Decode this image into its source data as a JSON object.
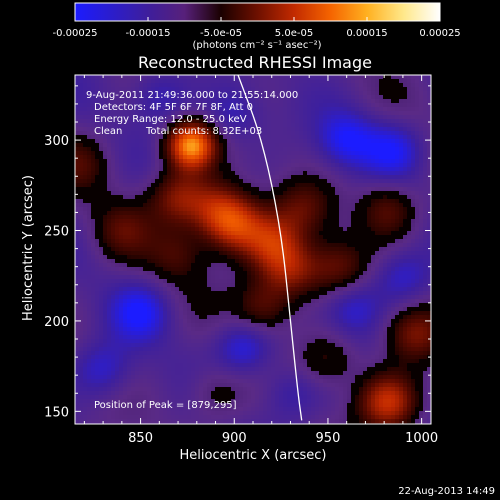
{
  "colorbar": {
    "min": -0.00025,
    "max": 0.00025,
    "tick_values": [
      -0.00025,
      -0.00015,
      -5e-05,
      5e-05,
      0.00015,
      0.00025
    ],
    "tick_labels": [
      "-0.00025",
      "-0.00015",
      "-5.0e-05",
      "5.0e-05",
      "0.00015",
      "0.00025"
    ],
    "unit_label": "(photons cm⁻² s⁻¹ asec⁻²)",
    "colors": [
      "#1c1cff",
      "#2b1dcc",
      "#3e1e9c",
      "#57207a",
      "#1a0000",
      "#6e1000",
      "#c22a00",
      "#f56400",
      "#ffb020",
      "#ffe88a",
      "#ffffff"
    ]
  },
  "chart_data": {
    "type": "heatmap",
    "title": "Reconstructed RHESSI Image",
    "xlabel": "Heliocentric X (arcsec)",
    "ylabel": "Heliocentric Y (arcsec)",
    "xlim": [
      815,
      1005
    ],
    "ylim": [
      143,
      336
    ],
    "x_ticks": [
      850,
      900,
      950,
      1000
    ],
    "y_ticks": [
      150,
      200,
      250,
      300
    ],
    "x_tick_labels": [
      "850",
      "900",
      "950",
      "1000"
    ],
    "y_tick_labels": [
      "150",
      "200",
      "250",
      "300"
    ],
    "limb_arc_points": [
      [
        902,
        336
      ],
      [
        915,
        300
      ],
      [
        925,
        250
      ],
      [
        930,
        200
      ],
      [
        934,
        160
      ],
      [
        936,
        145
      ]
    ],
    "sources": [
      {
        "x": 877,
        "y": 297,
        "value": 0.00025
      },
      {
        "x": 870,
        "y": 268,
        "value": 0.00012
      },
      {
        "x": 890,
        "y": 262,
        "value": 0.00011
      },
      {
        "x": 900,
        "y": 253,
        "value": 0.00016
      },
      {
        "x": 920,
        "y": 243,
        "value": 0.00013
      },
      {
        "x": 930,
        "y": 228,
        "value": 0.00012
      },
      {
        "x": 915,
        "y": 208,
        "value": 0.0001
      },
      {
        "x": 955,
        "y": 230,
        "value": 9e-05
      },
      {
        "x": 937,
        "y": 262,
        "value": 8e-05
      },
      {
        "x": 982,
        "y": 262,
        "value": 9e-05
      },
      {
        "x": 982,
        "y": 155,
        "value": 0.00017
      },
      {
        "x": 996,
        "y": 193,
        "value": 0.00011
      },
      {
        "x": 840,
        "y": 250,
        "value": 7e-05
      },
      {
        "x": 870,
        "y": 237,
        "value": 7e-05
      },
      {
        "x": 890,
        "y": 160,
        "value": 6e-05
      },
      {
        "x": 950,
        "y": 178,
        "value": 7e-05
      },
      {
        "x": 818,
        "y": 287,
        "value": 6e-05
      },
      {
        "x": 850,
        "y": 205,
        "value": -8e-05
      },
      {
        "x": 830,
        "y": 173,
        "value": -7e-05
      },
      {
        "x": 905,
        "y": 185,
        "value": -9e-05
      },
      {
        "x": 960,
        "y": 300,
        "value": -9e-05
      },
      {
        "x": 985,
        "y": 295,
        "value": -8e-05
      },
      {
        "x": 900,
        "y": 315,
        "value": -6e-05
      },
      {
        "x": 963,
        "y": 207,
        "value": -7e-05
      },
      {
        "x": 860,
        "y": 325,
        "value": -6e-05
      },
      {
        "x": 930,
        "y": 160,
        "value": -6e-05
      },
      {
        "x": 990,
        "y": 225,
        "value": -7e-05
      }
    ]
  },
  "info": {
    "time_range": "9-Aug-2011 21:49:36.000 to 21:55:14.000",
    "detectors": "Detectors: 4F 5F 6F 7F 8F, Att 0",
    "energy": "Energy Range: 12.0 - 25.0 keV",
    "clean": "Clean",
    "counts": "Total counts: 8.32E+03",
    "peak": "Position of Peak = [879,295]"
  },
  "footer_date": "22-Aug-2013 14:49"
}
